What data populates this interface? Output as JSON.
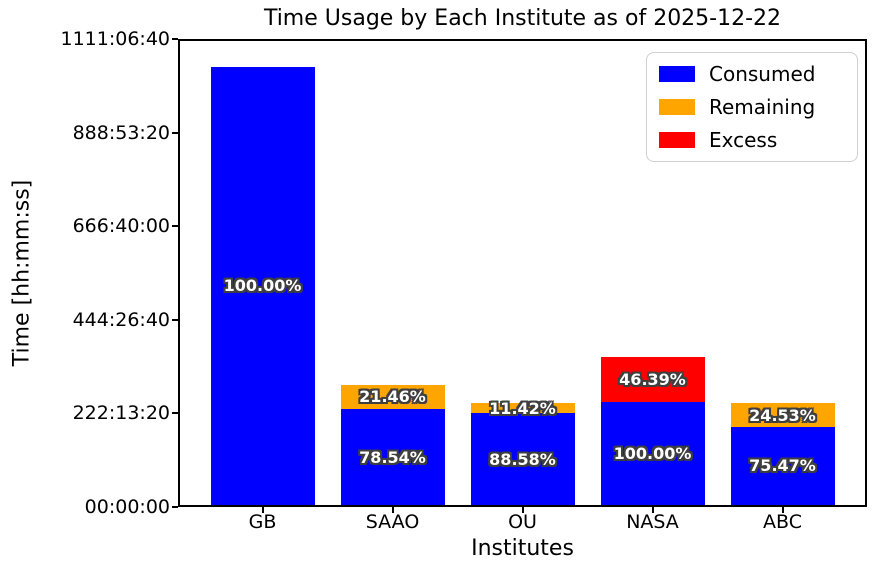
{
  "title": "Time Usage by Each Institute as of 2025-12-22",
  "x_axis_label": "Institutes",
  "y_axis_label": "Time [hh:mm:ss]",
  "y_ticks": [
    "00:00:00",
    "222:13:20",
    "444:26:40",
    "666:40:00",
    "888:53:20",
    "1111:06:40"
  ],
  "legend": {
    "items": [
      {
        "label": "Consumed",
        "color": "#0000ff"
      },
      {
        "label": "Remaining",
        "color": "#ffa500"
      },
      {
        "label": "Excess",
        "color": "#ff0000"
      }
    ]
  },
  "colors": {
    "consumed": "#0000ff",
    "remaining": "#ffa500",
    "excess": "#ff0000",
    "label_fill": "#ffffff",
    "label_outline": "#3f3f3f"
  },
  "chart_data": {
    "type": "bar",
    "stacked": true,
    "title": "Time Usage by Each Institute as of 2025-12-22",
    "xlabel": "Institutes",
    "ylabel": "Time [hh:mm:ss]",
    "categories": [
      "GB",
      "SAAO",
      "OU",
      "NASA",
      "ABC"
    ],
    "unit": "seconds",
    "ylim": [
      0,
      4000000
    ],
    "y_tick_seconds": [
      0,
      800000,
      1600000,
      2400000,
      3200000,
      4000000
    ],
    "y_tick_labels": [
      "00:00:00",
      "222:13:20",
      "444:26:40",
      "666:40:00",
      "888:53:20",
      "1111:06:40"
    ],
    "grid": false,
    "legend_position": "upper right",
    "series": [
      {
        "name": "Consumed",
        "color": "#0000ff",
        "values": [
          3744000,
          819958,
          784464,
          878400,
          668362
        ],
        "labels": [
          "100.00%",
          "78.54%",
          "88.58%",
          "100.00%",
          "75.47%"
        ]
      },
      {
        "name": "Remaining",
        "color": "#ffa500",
        "values": [
          0,
          224042,
          101136,
          0,
          217238
        ],
        "labels": [
          "",
          "21.46%",
          "11.42%",
          "",
          "24.53%"
        ]
      },
      {
        "name": "Excess",
        "color": "#ff0000",
        "values": [
          0,
          0,
          0,
          407490,
          0
        ],
        "labels": [
          "",
          "",
          "",
          "46.39%",
          ""
        ]
      }
    ]
  }
}
